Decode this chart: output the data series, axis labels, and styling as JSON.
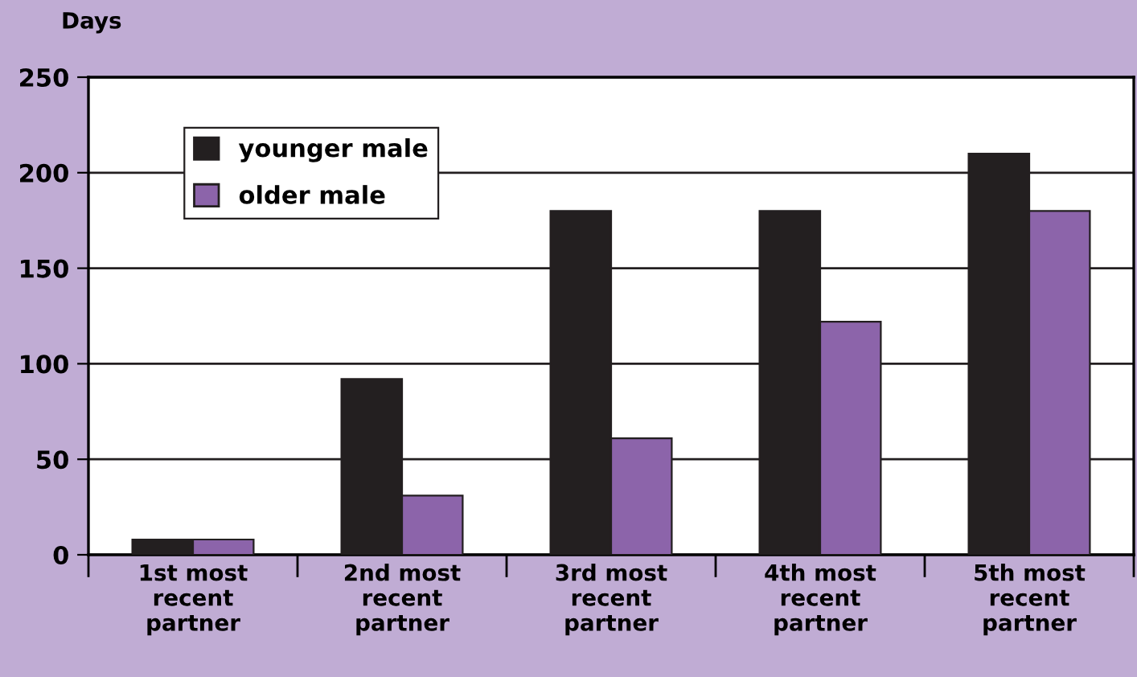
{
  "chart_data": {
    "type": "bar",
    "ylabel": "Days",
    "categories": [
      "1st most\nrecent\npartner",
      "2nd most\nrecent\npartner",
      "3rd most\nrecent\npartner",
      "4th most\nrecent\npartner",
      "5th most\nrecent\npartner"
    ],
    "series": [
      {
        "name": "younger male",
        "color": "#231f20",
        "values": [
          8,
          92,
          180,
          180,
          210
        ]
      },
      {
        "name": "older male",
        "color": "#8c64aa",
        "values": [
          8,
          31,
          61,
          122,
          180
        ]
      }
    ],
    "ylim": [
      0,
      250
    ],
    "yticks": [
      0,
      50,
      100,
      150,
      200,
      250
    ],
    "grid": "y",
    "legend": "top left"
  }
}
